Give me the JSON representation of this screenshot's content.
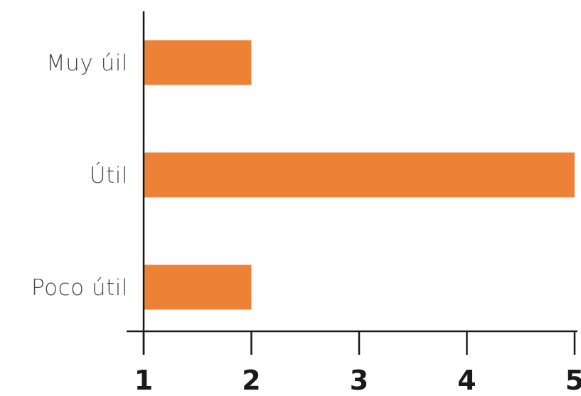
{
  "chart_data": {
    "type": "bar",
    "orientation": "horizontal",
    "categories": [
      "Muy úil",
      "Útil",
      "Poco útil"
    ],
    "values": [
      2,
      5,
      2
    ],
    "xlim": [
      1,
      5
    ],
    "xticks": [
      "1",
      "2",
      "3",
      "4",
      "5"
    ],
    "bar_color": "#ED8236",
    "axis_color": "#1a1a1a",
    "grid": false,
    "legend": "none"
  }
}
